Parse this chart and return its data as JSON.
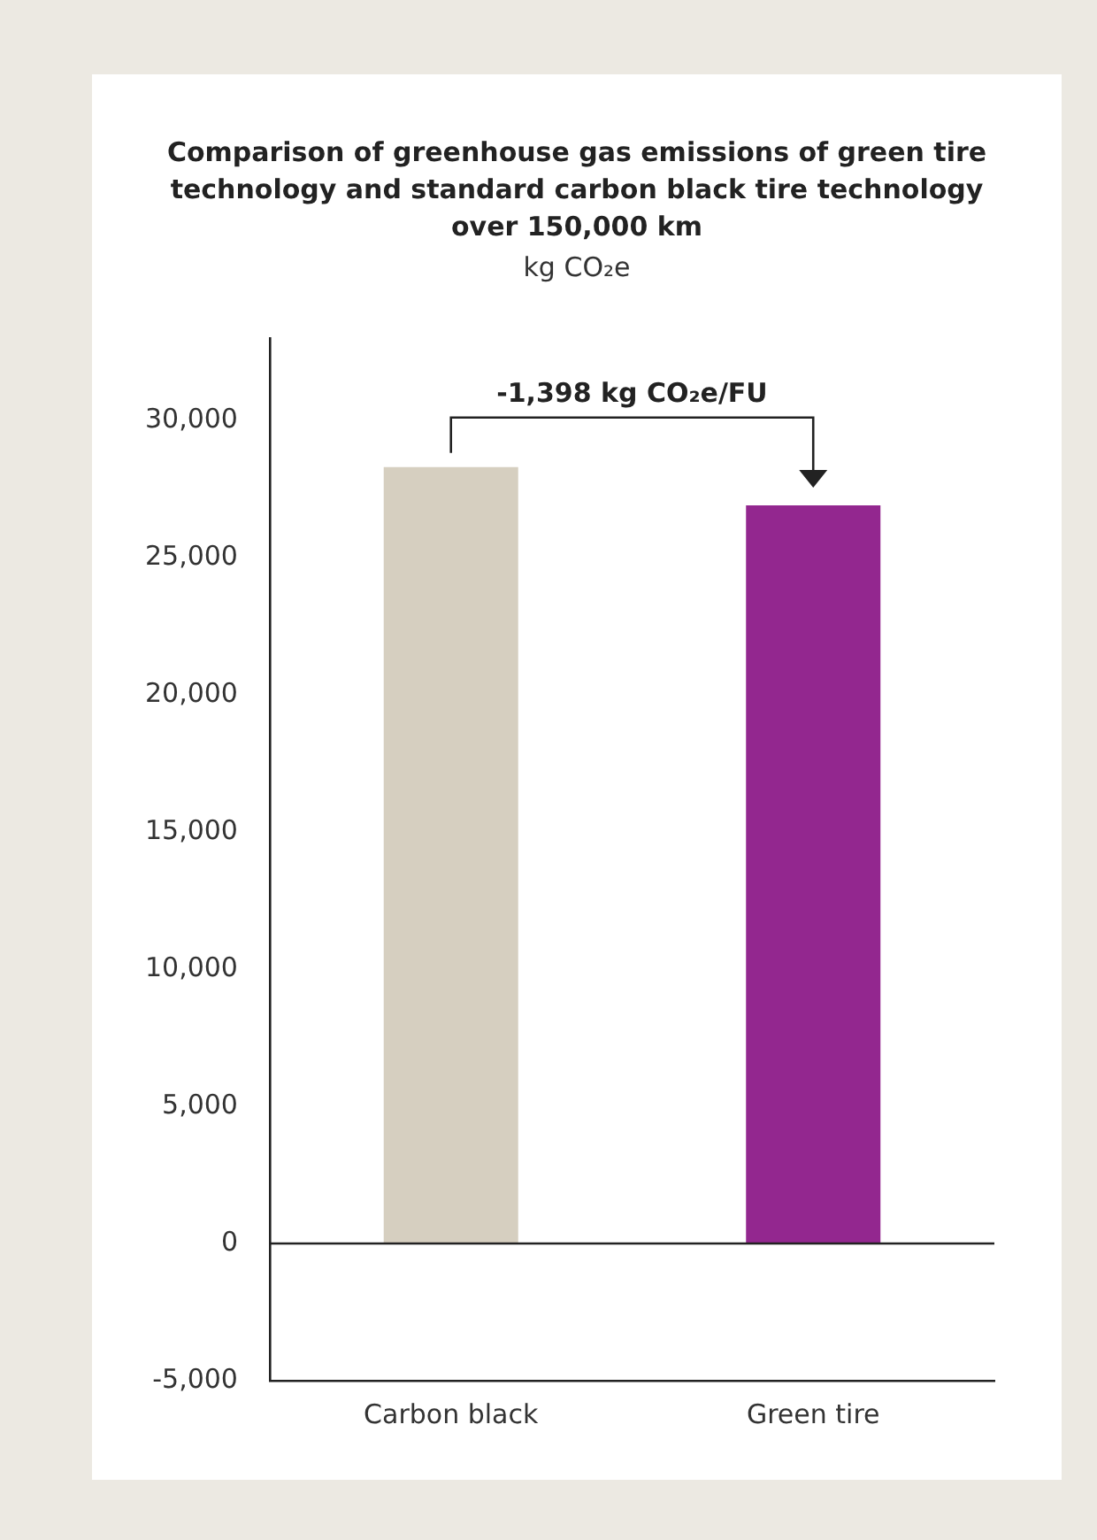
{
  "chart_data": {
    "type": "bar",
    "title": "Comparison of greenhouse gas emissions of green tire technology and standard carbon black tire technology over 150,000 km",
    "subtitle": "kg CO₂e",
    "categories": [
      "Carbon black",
      "Green tire"
    ],
    "values": [
      28300,
      26900
    ],
    "colors": [
      "#d6cfc0",
      "#93278f"
    ],
    "ylim": [
      -5000,
      33000
    ],
    "yticks": [
      {
        "value": -5000,
        "label": "-5,000"
      },
      0,
      {
        "value": 5000,
        "label": "5,000"
      },
      {
        "value": 10000,
        "label": "10,000"
      },
      {
        "value": 15000,
        "label": "15,000"
      },
      {
        "value": 20000,
        "label": "20,000"
      },
      {
        "value": 25000,
        "label": "25,000"
      },
      {
        "value": 30000,
        "label": "30,000"
      }
    ],
    "grid": false,
    "legend": false,
    "ref_lines": [
      {
        "axis": "y",
        "value": 0,
        "color": "#222222"
      }
    ],
    "annotations": [
      "-1,398 kg CO₂e/FU"
    ]
  }
}
